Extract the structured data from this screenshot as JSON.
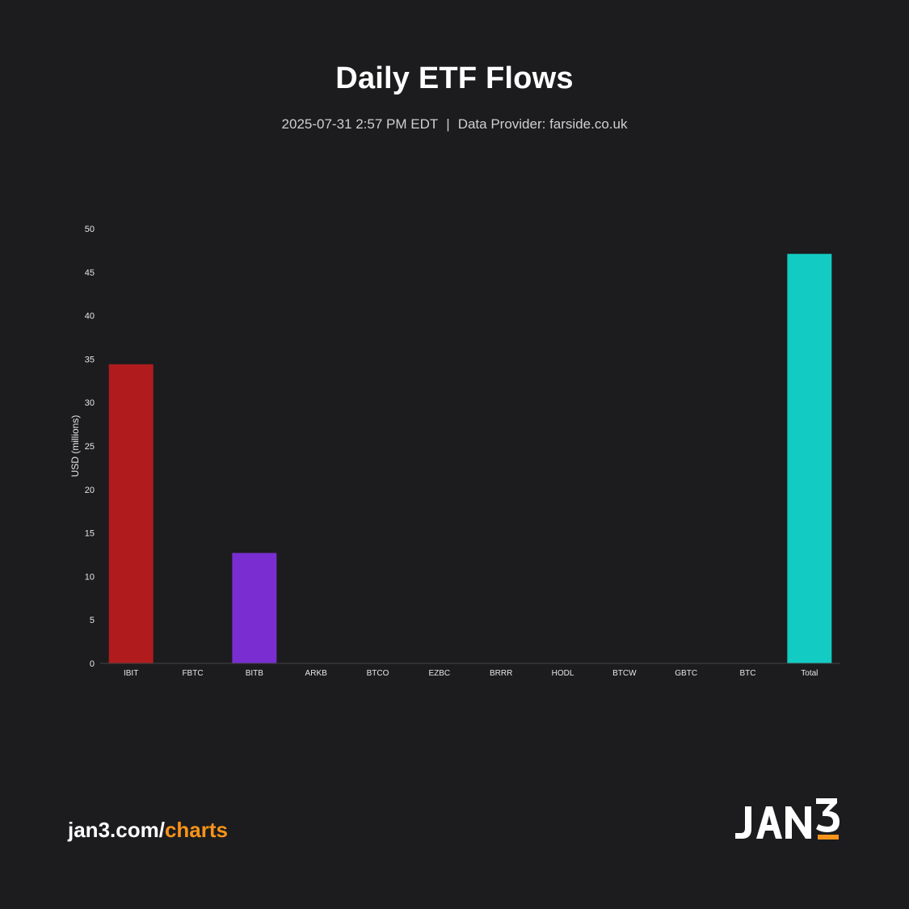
{
  "title": "Daily ETF Flows",
  "subtitle": {
    "timestamp": "2025-07-31 2:57 PM EDT",
    "separator": "|",
    "provider": "Data Provider: farside.co.uk"
  },
  "footer": {
    "link_prefix": "jan3.com/",
    "link_accent": "charts",
    "accent_color": "#f7931a",
    "logo_text": "JAN3"
  },
  "colors": {
    "background": "#1c1c1e",
    "axis_text": "#e6e6e6",
    "axis_line": "#444444"
  },
  "chart_data": {
    "type": "bar",
    "title": "Daily ETF Flows",
    "xlabel": "",
    "ylabel": "USD (millions)",
    "ylim": [
      0,
      50
    ],
    "yticks": [
      0,
      5,
      10,
      15,
      20,
      25,
      30,
      35,
      40,
      45,
      50
    ],
    "grid": false,
    "categories": [
      "IBIT",
      "FBTC",
      "BITB",
      "ARKB",
      "BTCO",
      "EZBC",
      "BRRR",
      "HODL",
      "BTCW",
      "GBTC",
      "BTC",
      "Total"
    ],
    "values": [
      34.4,
      0,
      12.7,
      0,
      0,
      0,
      0,
      0,
      0,
      0,
      0,
      47.1
    ],
    "bar_colors": [
      "#b01c1e",
      "#2a7de1",
      "#7a2ed1",
      "#5f9ea0",
      "#888888",
      "#888888",
      "#888888",
      "#888888",
      "#888888",
      "#888888",
      "#888888",
      "#12ccc4"
    ]
  }
}
